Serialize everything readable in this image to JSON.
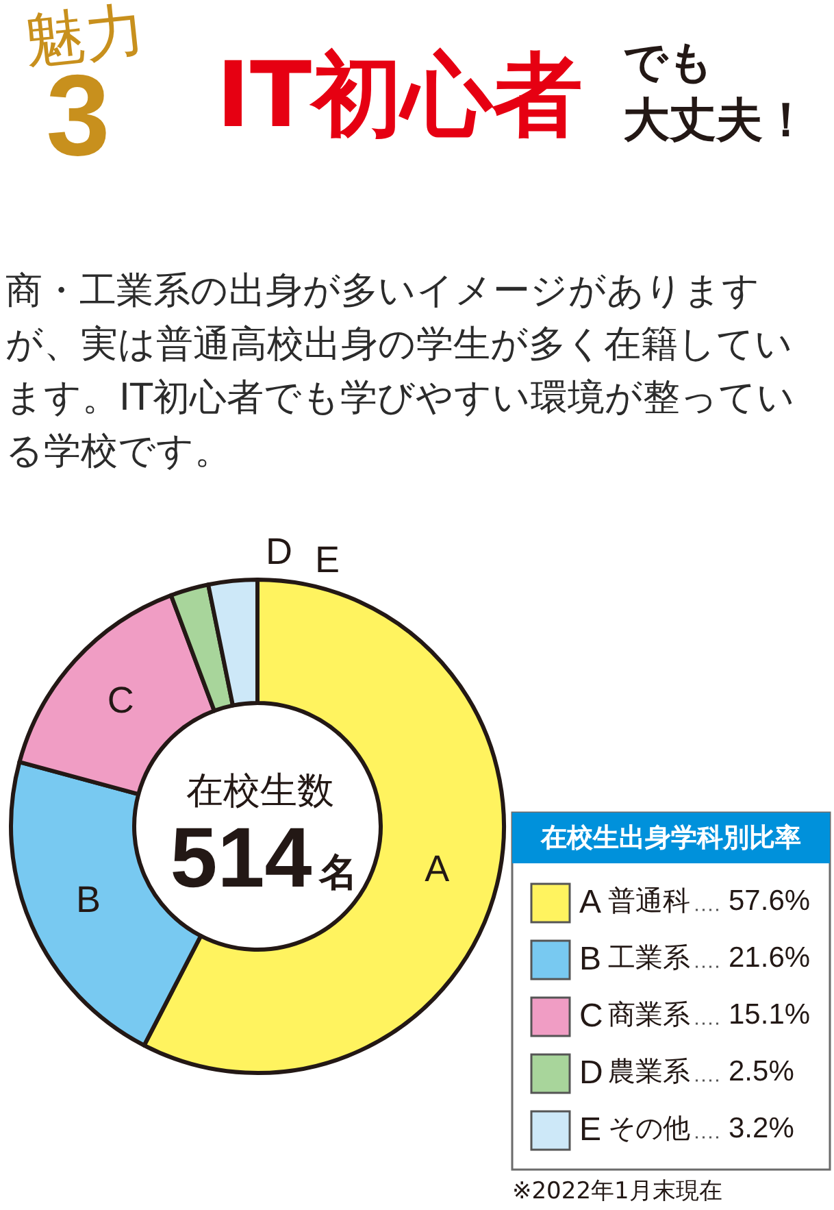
{
  "chart_data": {
    "type": "donut",
    "title": "IT初心者",
    "subtitle": "商・工業系の出身が多いイメージがありますが、実は普通高校出身の学生が多く在籍しています。IT初心者でも学びやすい環境が整っている学校です。",
    "categories": [
      "A",
      "B",
      "C",
      "D",
      "E"
    ],
    "values": [
      57.6,
      21.6,
      15.1,
      2.5,
      3.2
    ],
    "colors": [
      "#fff35f",
      "#78c9f1",
      "#f09dc4",
      "#a8d59b",
      "#cde8f8"
    ],
    "value_labels": [
      "57.6%",
      "21.6%",
      "15.1%",
      "2.5%",
      "3.2%"
    ],
    "legend_title": "在校生出身学科別比率",
    "legend": "bottom right",
    "annotations": [
      "魅力",
      "3",
      "でも",
      "大丈夫！",
      "在校生数",
      "514",
      "名",
      "※2022年1月末現在",
      {
        "text": "普通科",
        "x": "A"
      },
      {
        "text": "工業系",
        "x": "B"
      },
      {
        "text": "商業系",
        "x": "C"
      },
      {
        "text": "農業系",
        "x": "D"
      },
      {
        "text": "その他",
        "x": "E"
      }
    ]
  }
}
